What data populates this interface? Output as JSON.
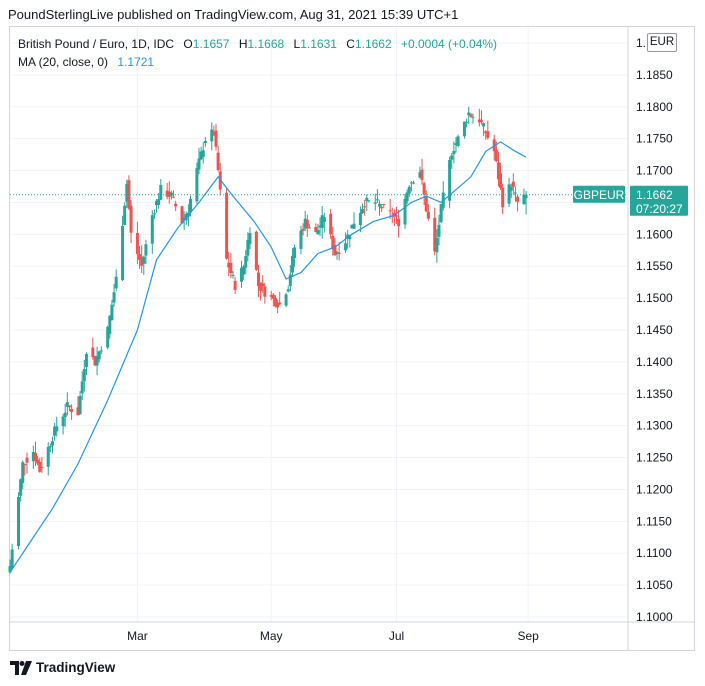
{
  "header": {
    "published": "PoundSterlingLive published on TradingView.com, Aug 31, 2021 15:39 UTC+1"
  },
  "legend": {
    "instrument": "British Pound / Euro, 1D, IDC",
    "o_label": "O",
    "o_value": "1.1657",
    "h_label": "H",
    "h_value": "1.1668",
    "l_label": "L",
    "l_value": "1.1631",
    "c_label": "C",
    "c_value": "1.1662",
    "change": "+0.0004 (+0.04%)",
    "ma_label": "MA (20, close, 0)",
    "ma_value": "1.1721"
  },
  "currency_badge": "EUR",
  "price_badge": {
    "symbol": "GBPEUR",
    "price": "1.1662",
    "countdown": "07:20:27"
  },
  "footer": {
    "brand": "TradingView"
  },
  "colors": {
    "up": "#26a69a",
    "down": "#ef5350",
    "ma": "#2196f3",
    "grid": "#f0f3fa"
  },
  "chart_data": {
    "type": "candlestick",
    "ylim": [
      1.1,
      1.19
    ],
    "y_ticks": [
      "1.1000",
      "1.1050",
      "1.1100",
      "1.1150",
      "1.1200",
      "1.1250",
      "1.1300",
      "1.1350",
      "1.1400",
      "1.1450",
      "1.1500",
      "1.1550",
      "1.1600",
      "1.1650",
      "1.1700",
      "1.1750",
      "1.1800",
      "1.1850",
      "1.1900"
    ],
    "x_ticks": [
      {
        "label": "Mar",
        "date": "2021-03-01"
      },
      {
        "label": "May",
        "date": "2021-05-03"
      },
      {
        "label": "Jul",
        "date": "2021-07-01"
      },
      {
        "label": "Sep",
        "date": "2021-09-01"
      }
    ],
    "x_range": [
      "2020-12-31",
      "2021-10-18"
    ],
    "anchors": [
      [
        "2020-12-31",
        1.108
      ],
      [
        "2021-01-06",
        1.124
      ],
      [
        "2021-01-11",
        1.126
      ],
      [
        "2021-01-14",
        1.123
      ],
      [
        "2021-01-22",
        1.13
      ],
      [
        "2021-01-27",
        1.133
      ],
      [
        "2021-02-01",
        1.132
      ],
      [
        "2021-02-05",
        1.142
      ],
      [
        "2021-02-09",
        1.14
      ],
      [
        "2021-02-15",
        1.145
      ],
      [
        "2021-02-19",
        1.153
      ],
      [
        "2021-02-24",
        1.168
      ],
      [
        "2021-02-26",
        1.16
      ],
      [
        "2021-03-03",
        1.155
      ],
      [
        "2021-03-08",
        1.163
      ],
      [
        "2021-03-12",
        1.167
      ],
      [
        "2021-03-17",
        1.166
      ],
      [
        "2021-03-22",
        1.162
      ],
      [
        "2021-03-25",
        1.164
      ],
      [
        "2021-03-29",
        1.17
      ],
      [
        "2021-04-02",
        1.175
      ],
      [
        "2021-04-06",
        1.176
      ],
      [
        "2021-04-08",
        1.17
      ],
      [
        "2021-04-12",
        1.156
      ],
      [
        "2021-04-16",
        1.152
      ],
      [
        "2021-04-20",
        1.155
      ],
      [
        "2021-04-23",
        1.161
      ],
      [
        "2021-04-27",
        1.152
      ],
      [
        "2021-05-03",
        1.15
      ],
      [
        "2021-05-07",
        1.149
      ],
      [
        "2021-05-11",
        1.152
      ],
      [
        "2021-05-14",
        1.158
      ],
      [
        "2021-05-19",
        1.162
      ],
      [
        "2021-05-24",
        1.16
      ],
      [
        "2021-05-28",
        1.163
      ],
      [
        "2021-06-02",
        1.157
      ],
      [
        "2021-06-07",
        1.159
      ],
      [
        "2021-06-11",
        1.162
      ],
      [
        "2021-06-16",
        1.165
      ],
      [
        "2021-06-21",
        1.165
      ],
      [
        "2021-06-25",
        1.164
      ],
      [
        "2021-06-29",
        1.163
      ],
      [
        "2021-07-02",
        1.162
      ],
      [
        "2021-07-07",
        1.168
      ],
      [
        "2021-07-12",
        1.17
      ],
      [
        "2021-07-15",
        1.164
      ],
      [
        "2021-07-19",
        1.157
      ],
      [
        "2021-07-22",
        1.164
      ],
      [
        "2021-07-27",
        1.173
      ],
      [
        "2021-07-30",
        1.175
      ],
      [
        "2021-08-04",
        1.179
      ],
      [
        "2021-08-09",
        1.178
      ],
      [
        "2021-08-12",
        1.176
      ],
      [
        "2021-08-16",
        1.173
      ],
      [
        "2021-08-20",
        1.165
      ],
      [
        "2021-08-24",
        1.168
      ],
      [
        "2021-08-27",
        1.165
      ],
      [
        "2021-08-31",
        1.1662
      ]
    ],
    "ma": [
      [
        "2020-12-31",
        1.107
      ],
      [
        "2021-01-10",
        1.112
      ],
      [
        "2021-01-20",
        1.117
      ],
      [
        "2021-02-01",
        1.124
      ],
      [
        "2021-02-15",
        1.134
      ],
      [
        "2021-03-01",
        1.145
      ],
      [
        "2021-03-10",
        1.156
      ],
      [
        "2021-03-20",
        1.161
      ],
      [
        "2021-03-30",
        1.165
      ],
      [
        "2021-04-08",
        1.169
      ],
      [
        "2021-04-15",
        1.166
      ],
      [
        "2021-04-25",
        1.162
      ],
      [
        "2021-05-03",
        1.158
      ],
      [
        "2021-05-10",
        1.153
      ],
      [
        "2021-05-17",
        1.154
      ],
      [
        "2021-05-25",
        1.157
      ],
      [
        "2021-06-02",
        1.158
      ],
      [
        "2021-06-10",
        1.16
      ],
      [
        "2021-06-20",
        1.162
      ],
      [
        "2021-06-30",
        1.163
      ],
      [
        "2021-07-08",
        1.165
      ],
      [
        "2021-07-15",
        1.166
      ],
      [
        "2021-07-22",
        1.165
      ],
      [
        "2021-07-29",
        1.167
      ],
      [
        "2021-08-05",
        1.169
      ],
      [
        "2021-08-12",
        1.173
      ],
      [
        "2021-08-19",
        1.1745
      ],
      [
        "2021-08-26",
        1.173
      ],
      [
        "2021-08-31",
        1.1721
      ]
    ]
  }
}
